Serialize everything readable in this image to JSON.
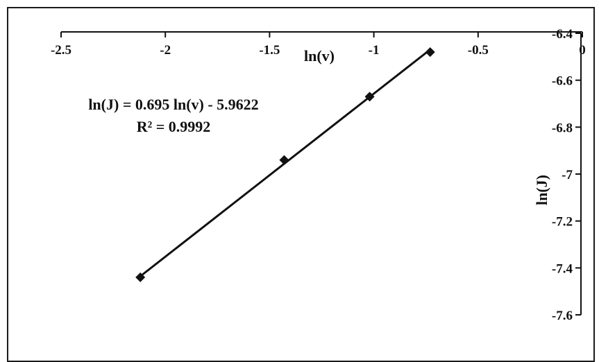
{
  "chart_data": {
    "type": "scatter",
    "xlabel": "ln(v)",
    "ylabel": "ln(J)",
    "xlim": [
      -2.5,
      0
    ],
    "ylim": [
      -7.6,
      -6.4
    ],
    "x_ticks": [
      -2.5,
      -2,
      -1.5,
      -1,
      -0.5,
      0
    ],
    "y_ticks": [
      -6.4,
      -6.6,
      -6.8,
      -7,
      -7.2,
      -7.4,
      -7.6
    ],
    "x_tick_labels": [
      "-2.5",
      "-2",
      "-1.5",
      "-1",
      "-0.5",
      "0"
    ],
    "y_tick_labels": [
      "-6.4",
      "-6.6",
      "-6.8",
      "-7",
      "-7.2",
      "-7.4",
      "-7.6"
    ],
    "x_axis_position": "top",
    "y_axis_position": "right",
    "series": [
      {
        "marker": "diamond",
        "x": [
          -2.12,
          -1.43,
          -1.02,
          -0.73
        ],
        "y": [
          -7.44,
          -6.94,
          -6.67,
          -6.48
        ]
      }
    ],
    "trendline": {
      "type": "linear",
      "slope": 0.695,
      "intercept": -5.9622,
      "x_range": [
        -2.12,
        -0.73
      ],
      "equation": "ln(J) = 0.695 ln(v) - 5.9622",
      "r_squared": "R² = 0.9992"
    },
    "grid": false,
    "colors": {
      "line": "#111111",
      "marker": "#111111",
      "frame": "#1a1a1a"
    }
  }
}
